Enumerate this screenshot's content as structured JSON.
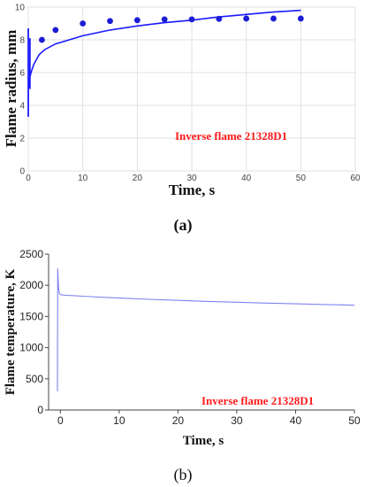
{
  "colors": {
    "series_a": "#1a1aff",
    "points_a": "#1c1cd6",
    "series_b": "#7f82f0",
    "annotation": "#ff1a1a",
    "grid": "#e2e2e2"
  },
  "panel_a": {
    "caption": "(a)"
  },
  "panel_b": {
    "caption": "(b)"
  },
  "chart_data": [
    {
      "type": "line",
      "xlabel": "Time, s",
      "ylabel": "Flame radius, mm",
      "xlim": [
        0,
        60
      ],
      "ylim": [
        0,
        10
      ],
      "xticks": [
        "0",
        "10",
        "20",
        "30",
        "40",
        "50",
        "60"
      ],
      "yticks": [
        "0",
        "2",
        "4",
        "6",
        "8",
        "10"
      ],
      "grid": true,
      "annotation": "Inverse flame 21328D1",
      "series": [
        {
          "kind": "line",
          "x": [
            0.05,
            0.2,
            0.5,
            1,
            2,
            3,
            5,
            7.5,
            10,
            15,
            20,
            25,
            30,
            35,
            40,
            45,
            50
          ],
          "y": [
            5.1,
            5.6,
            6.0,
            6.5,
            7.1,
            7.4,
            7.75,
            8.0,
            8.25,
            8.6,
            8.85,
            9.05,
            9.2,
            9.4,
            9.55,
            9.7,
            9.8
          ]
        },
        {
          "kind": "points",
          "x": [
            2.5,
            5,
            10,
            15,
            20,
            25,
            30,
            35,
            40,
            45,
            50
          ],
          "y": [
            8.0,
            8.6,
            9.0,
            9.15,
            9.2,
            9.25,
            9.25,
            9.28,
            9.3,
            9.3,
            9.3
          ]
        }
      ],
      "vertical_segments": [
        {
          "x": 0.0,
          "y": [
            3.3,
            8.7
          ]
        },
        {
          "x": 0.3,
          "y": [
            5.0,
            8.1
          ]
        }
      ]
    },
    {
      "type": "line",
      "xlabel": "Time, s",
      "ylabel": "Flame temperature, K",
      "xlim": [
        -2,
        50
      ],
      "ylim": [
        0,
        2500
      ],
      "xticks": [
        "0",
        "10",
        "20",
        "30",
        "40",
        "50"
      ],
      "yticks": [
        "0",
        "500",
        "1000",
        "1500",
        "2000",
        "2500"
      ],
      "grid": false,
      "annotation": "Inverse flame 21328D1",
      "series": [
        {
          "kind": "line",
          "x": [
            -0.5,
            -0.45,
            -0.3,
            -0.15,
            0.0,
            0.3,
            1,
            2,
            5,
            10,
            15,
            20,
            25,
            30,
            35,
            40,
            45,
            50
          ],
          "y": [
            300,
            2270,
            1950,
            1870,
            1850,
            1845,
            1840,
            1835,
            1818,
            1795,
            1775,
            1758,
            1742,
            1728,
            1715,
            1703,
            1692,
            1680
          ]
        }
      ]
    }
  ]
}
